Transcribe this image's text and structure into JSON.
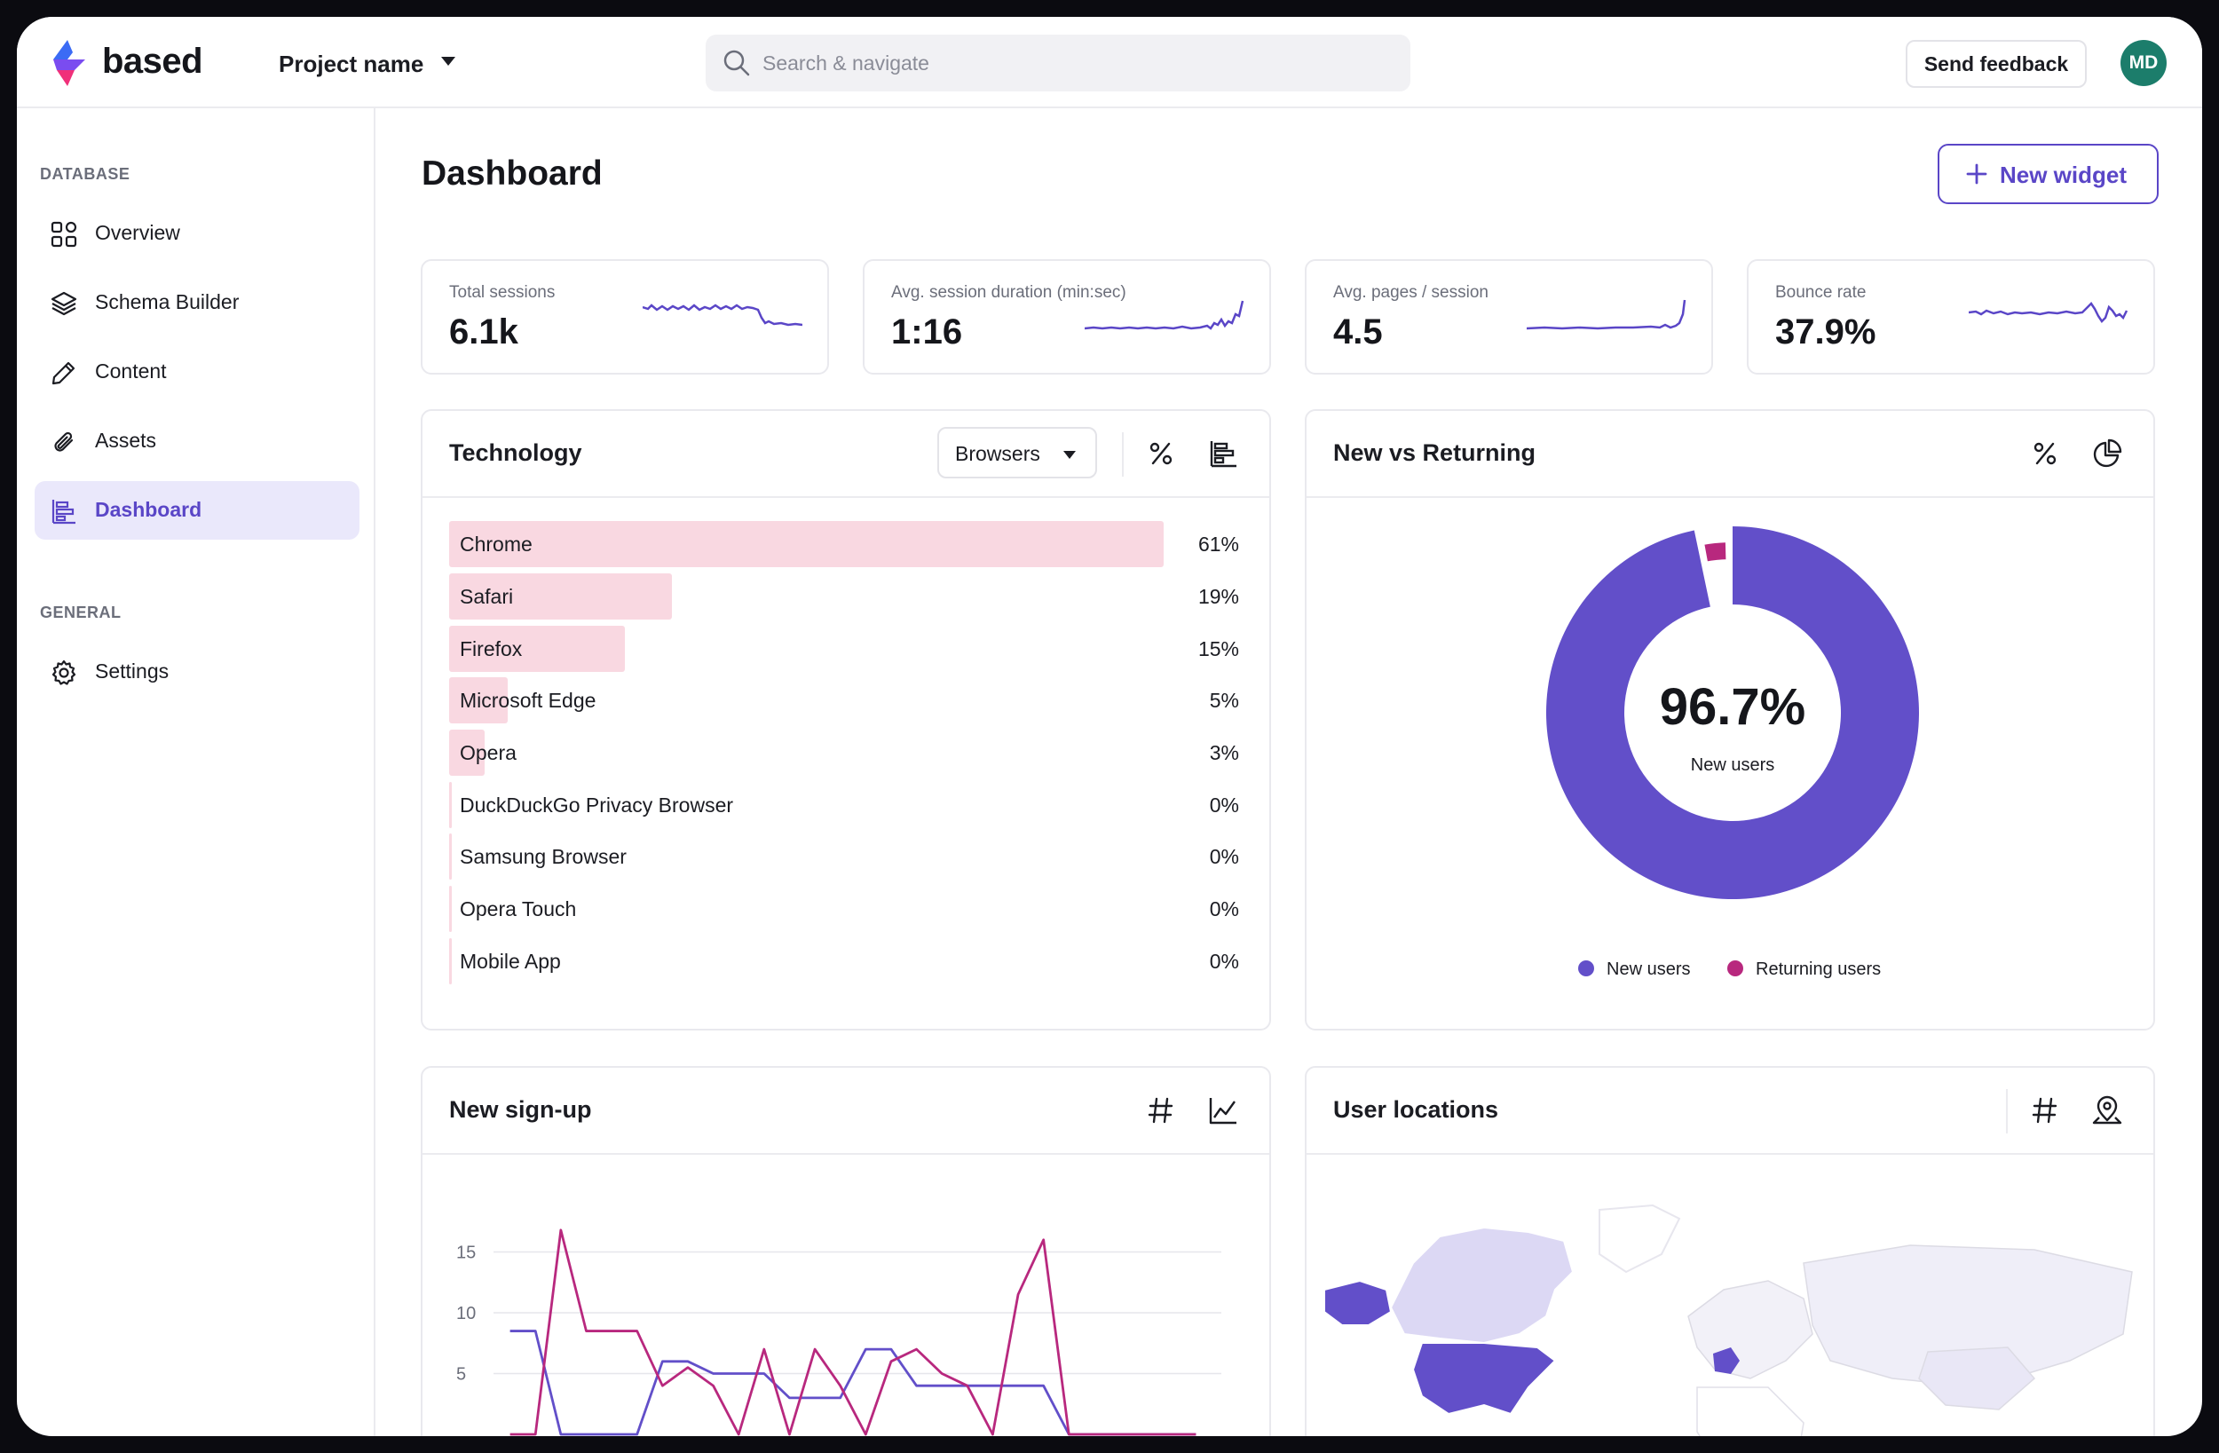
{
  "app": {
    "brand": "based",
    "project": "Project name"
  },
  "search": {
    "placeholder": "Search & navigate"
  },
  "header": {
    "feedback_label": "Send feedback",
    "avatar_initials": "MD"
  },
  "sidebar": {
    "database_title": "DATABASE",
    "general_title": "GENERAL",
    "items": [
      {
        "label": "Overview",
        "icon": "grid-icon"
      },
      {
        "label": "Schema Builder",
        "icon": "layers-icon"
      },
      {
        "label": "Content",
        "icon": "pencil-icon"
      },
      {
        "label": "Assets",
        "icon": "paperclip-icon"
      },
      {
        "label": "Dashboard",
        "icon": "bar-chart-icon",
        "active": true
      }
    ],
    "general_items": [
      {
        "label": "Settings",
        "icon": "gear-icon"
      }
    ]
  },
  "main": {
    "title": "Dashboard",
    "new_widget_label": "New widget"
  },
  "kpis": [
    {
      "label": "Total sessions",
      "value": "6.1k"
    },
    {
      "label": "Avg. session duration (min:sec)",
      "value": "1:16"
    },
    {
      "label": "Avg. pages / session",
      "value": "4.5"
    },
    {
      "label": "Bounce rate",
      "value": "37.9%"
    }
  ],
  "technology": {
    "title": "Technology",
    "select_value": "Browsers",
    "rows": [
      {
        "label": "Chrome",
        "value": "61%",
        "pct": 61
      },
      {
        "label": "Safari",
        "value": "19%",
        "pct": 19
      },
      {
        "label": "Firefox",
        "value": "15%",
        "pct": 15
      },
      {
        "label": "Microsoft Edge",
        "value": "5%",
        "pct": 5
      },
      {
        "label": "Opera",
        "value": "3%",
        "pct": 3
      },
      {
        "label": "DuckDuckGo Privacy Browser",
        "value": "0%",
        "pct": 0
      },
      {
        "label": "Samsung Browser",
        "value": "0%",
        "pct": 0
      },
      {
        "label": "Opera Touch",
        "value": "0%",
        "pct": 0
      },
      {
        "label": "Mobile App",
        "value": "0%",
        "pct": 0
      }
    ]
  },
  "returning": {
    "title": "New vs Returning",
    "center_value": "96.7%",
    "center_label": "New users",
    "legend": [
      {
        "label": "New users",
        "color": "#624fc9"
      },
      {
        "label": "Returning users",
        "color": "#b8287e"
      }
    ]
  },
  "signup": {
    "title": "New sign-up"
  },
  "locations": {
    "title": "User locations"
  },
  "colors": {
    "accent": "#5a46c7",
    "pink": "#b8287e",
    "bar": "#f9d8e1"
  },
  "chart_data": [
    {
      "type": "pie",
      "title": "New vs Returning",
      "categories": [
        "New users",
        "Returning users"
      ],
      "values": [
        96.7,
        3.3
      ]
    },
    {
      "type": "line",
      "title": "New sign-up",
      "ylabel": "",
      "yticks": [
        5,
        10,
        15
      ],
      "x": [
        1,
        2,
        3,
        4,
        5,
        6,
        7,
        8,
        9,
        10,
        11,
        12,
        13,
        14,
        15,
        16,
        17,
        18,
        19,
        20,
        21,
        22,
        23,
        24,
        25,
        26,
        27,
        28
      ],
      "series": [
        {
          "color": "#624fc9",
          "values": [
            8.5,
            8.5,
            0,
            0,
            0,
            0,
            6,
            6,
            5,
            5,
            5,
            3,
            3,
            3,
            7,
            7,
            4,
            4,
            4,
            4,
            4,
            4,
            0,
            0,
            0,
            0,
            0,
            0
          ]
        },
        {
          "color": "#b8287e",
          "values": [
            0,
            0,
            16.8,
            8.5,
            8.5,
            8.5,
            4,
            5.5,
            4,
            0,
            7,
            0,
            7,
            4,
            0,
            6,
            7,
            5,
            4,
            0,
            11.5,
            16,
            0,
            0,
            0,
            0,
            0,
            0
          ]
        }
      ]
    }
  ]
}
